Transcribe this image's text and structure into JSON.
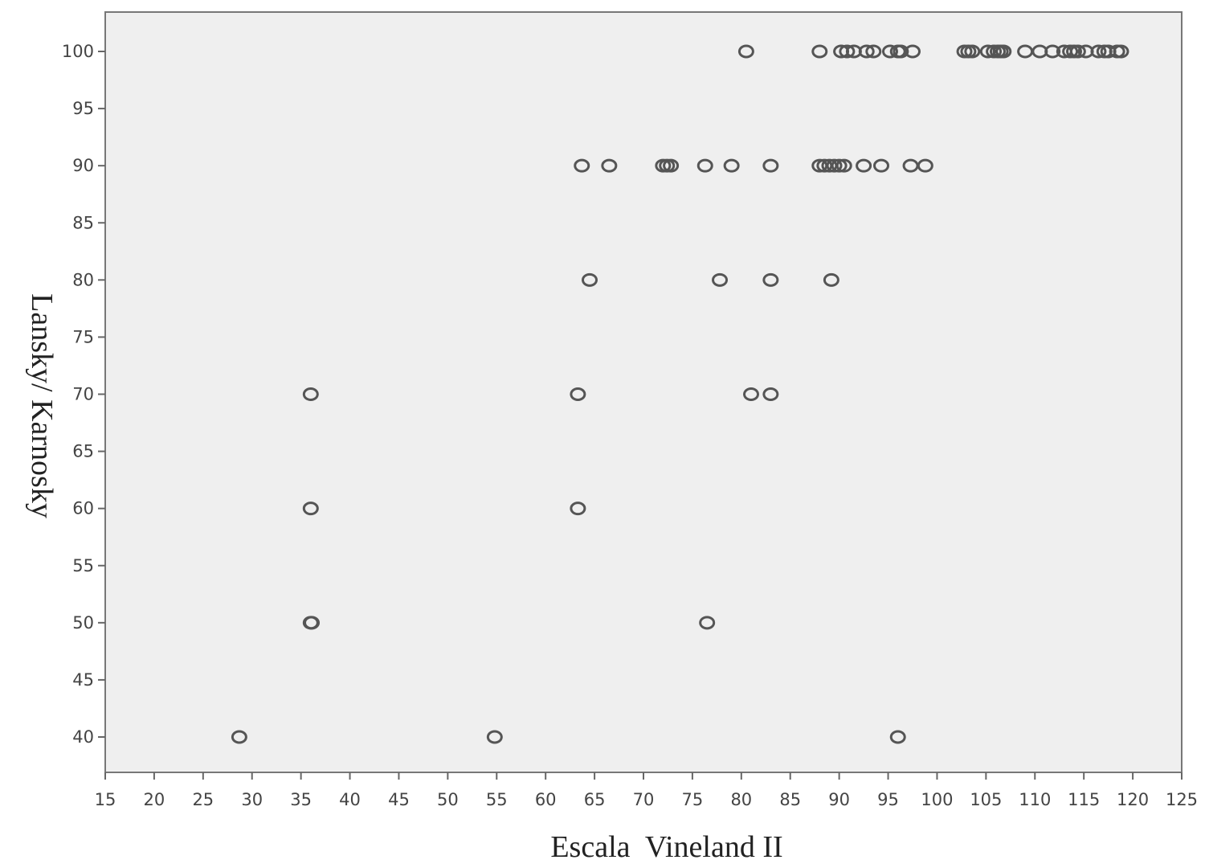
{
  "chart_data": {
    "type": "scatter",
    "title": "",
    "xlabel": "Escala  Vineland II",
    "ylabel": "Lansky/ Karnosky",
    "xlim": [
      15,
      125
    ],
    "ylim": [
      37,
      103
    ],
    "x_ticks": [
      15,
      20,
      25,
      30,
      35,
      40,
      45,
      50,
      55,
      60,
      65,
      70,
      75,
      80,
      85,
      90,
      95,
      100,
      105,
      110,
      115,
      120,
      125
    ],
    "y_ticks": [
      40,
      45,
      50,
      55,
      60,
      65,
      70,
      75,
      80,
      85,
      90,
      95,
      100
    ],
    "grid": false,
    "background": "#efefef",
    "marker": "open-circle",
    "marker_color": "#555555",
    "series": [
      {
        "points": [
          [
            80.5,
            100
          ],
          [
            88,
            100
          ],
          [
            90.2,
            100
          ],
          [
            90.8,
            100
          ],
          [
            91.5,
            100
          ],
          [
            92.8,
            100
          ],
          [
            93.5,
            100
          ],
          [
            95.2,
            100
          ],
          [
            96,
            100
          ],
          [
            96.3,
            100
          ],
          [
            97.5,
            100
          ],
          [
            102.8,
            100
          ],
          [
            103.2,
            100
          ],
          [
            103.6,
            100
          ],
          [
            105.2,
            100
          ],
          [
            105.8,
            100
          ],
          [
            106.2,
            100
          ],
          [
            106.5,
            100
          ],
          [
            106.8,
            100
          ],
          [
            109,
            100
          ],
          [
            110.5,
            100
          ],
          [
            111.8,
            100
          ],
          [
            113,
            100
          ],
          [
            113.6,
            100
          ],
          [
            114,
            100
          ],
          [
            114.4,
            100
          ],
          [
            115.2,
            100
          ],
          [
            116.5,
            100
          ],
          [
            117.1,
            100
          ],
          [
            117.5,
            100
          ],
          [
            118.4,
            100
          ],
          [
            118.8,
            100
          ],
          [
            63.7,
            90
          ],
          [
            66.5,
            90
          ],
          [
            72,
            90
          ],
          [
            72.4,
            90
          ],
          [
            72.8,
            90
          ],
          [
            76.3,
            90
          ],
          [
            79,
            90
          ],
          [
            83,
            90
          ],
          [
            88,
            90
          ],
          [
            88.5,
            90
          ],
          [
            89,
            90
          ],
          [
            89.5,
            90
          ],
          [
            90,
            90
          ],
          [
            90.5,
            90
          ],
          [
            92.5,
            90
          ],
          [
            94.3,
            90
          ],
          [
            97.3,
            90
          ],
          [
            98.8,
            90
          ],
          [
            64.5,
            80
          ],
          [
            77.8,
            80
          ],
          [
            83,
            80
          ],
          [
            89.2,
            80
          ],
          [
            36,
            70
          ],
          [
            63.3,
            70
          ],
          [
            81,
            70
          ],
          [
            83,
            70
          ],
          [
            36,
            60
          ],
          [
            63.3,
            60
          ],
          [
            36,
            50
          ],
          [
            36.1,
            50
          ],
          [
            76.5,
            50
          ],
          [
            28.7,
            40
          ],
          [
            54.8,
            40
          ],
          [
            96,
            40
          ]
        ]
      }
    ]
  }
}
